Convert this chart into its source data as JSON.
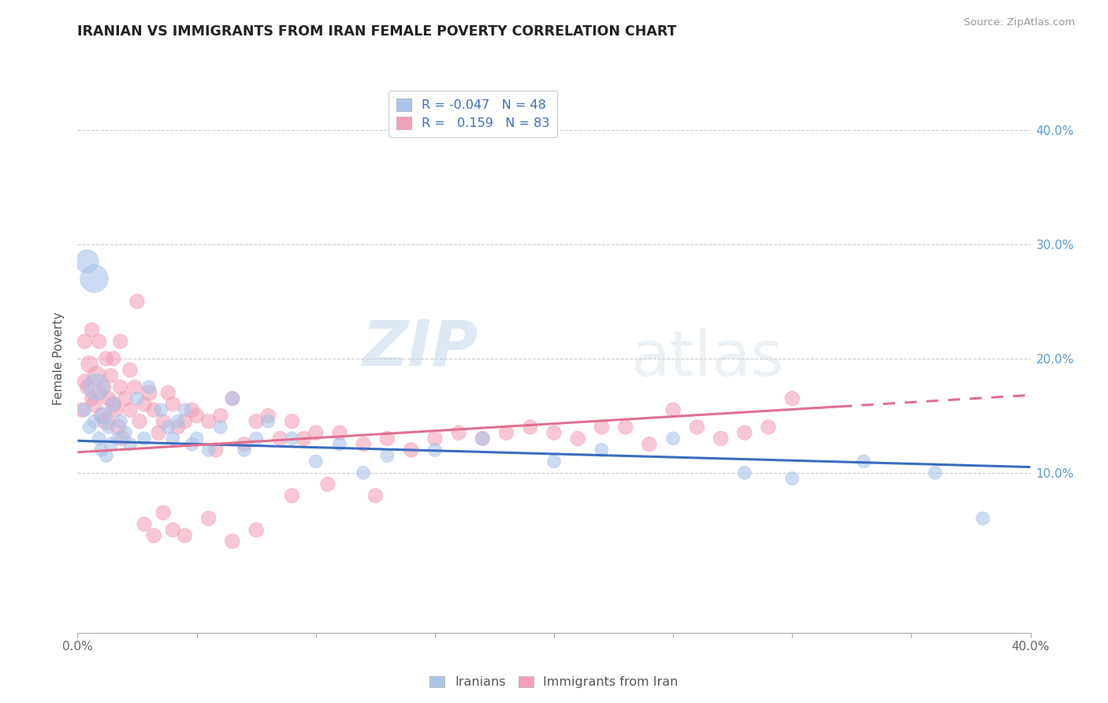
{
  "title": "IRANIAN VS IMMIGRANTS FROM IRAN FEMALE POVERTY CORRELATION CHART",
  "source": "Source: ZipAtlas.com",
  "ylabel": "Female Poverty",
  "watermark": "ZIPatlas",
  "legend_r1": "R = -0.047",
  "legend_n1": "N = 48",
  "legend_r2": "R =  0.159",
  "legend_n2": "N = 83",
  "legend_label1": "Iranians",
  "legend_label2": "Immigrants from Iran",
  "xlim": [
    0.0,
    0.4
  ],
  "ylim": [
    -0.04,
    0.44
  ],
  "yticks": [
    0.1,
    0.2,
    0.3,
    0.4
  ],
  "ytick_labels": [
    "10.0%",
    "20.0%",
    "30.0%",
    "40.0%"
  ],
  "xticks": [
    0.0,
    0.05,
    0.1,
    0.15,
    0.2,
    0.25,
    0.3,
    0.35,
    0.4
  ],
  "color_blue": "#aac4e8",
  "color_pink": "#f4a0b8",
  "line_blue": "#3c6cbf",
  "line_pink": "#e07090",
  "background": "#ffffff",
  "iranians_x": [
    0.003,
    0.005,
    0.007,
    0.008,
    0.009,
    0.01,
    0.011,
    0.012,
    0.013,
    0.014,
    0.015,
    0.017,
    0.018,
    0.02,
    0.022,
    0.025,
    0.028,
    0.03,
    0.035,
    0.038,
    0.04,
    0.042,
    0.045,
    0.048,
    0.05,
    0.055,
    0.06,
    0.065,
    0.07,
    0.075,
    0.08,
    0.09,
    0.1,
    0.11,
    0.12,
    0.13,
    0.15,
    0.17,
    0.2,
    0.22,
    0.25,
    0.28,
    0.3,
    0.33,
    0.36,
    0.38,
    0.007,
    0.004
  ],
  "iranians_y": [
    0.155,
    0.14,
    0.145,
    0.175,
    0.13,
    0.12,
    0.15,
    0.115,
    0.14,
    0.125,
    0.16,
    0.13,
    0.145,
    0.135,
    0.125,
    0.165,
    0.13,
    0.175,
    0.155,
    0.14,
    0.13,
    0.145,
    0.155,
    0.125,
    0.13,
    0.12,
    0.14,
    0.165,
    0.12,
    0.13,
    0.145,
    0.13,
    0.11,
    0.125,
    0.1,
    0.115,
    0.12,
    0.13,
    0.11,
    0.12,
    0.13,
    0.1,
    0.095,
    0.11,
    0.1,
    0.06,
    0.27,
    0.285
  ],
  "iranians_size": [
    50,
    50,
    50,
    200,
    50,
    50,
    80,
    50,
    50,
    50,
    50,
    50,
    50,
    50,
    50,
    50,
    50,
    50,
    50,
    50,
    50,
    50,
    50,
    50,
    50,
    50,
    50,
    50,
    50,
    50,
    50,
    50,
    50,
    50,
    50,
    50,
    50,
    50,
    50,
    50,
    50,
    50,
    50,
    50,
    50,
    50,
    220,
    150
  ],
  "immigrants_x": [
    0.002,
    0.003,
    0.004,
    0.005,
    0.006,
    0.007,
    0.008,
    0.009,
    0.01,
    0.011,
    0.012,
    0.013,
    0.014,
    0.015,
    0.016,
    0.017,
    0.018,
    0.019,
    0.02,
    0.022,
    0.024,
    0.026,
    0.028,
    0.03,
    0.032,
    0.034,
    0.036,
    0.038,
    0.04,
    0.042,
    0.045,
    0.048,
    0.05,
    0.055,
    0.058,
    0.06,
    0.065,
    0.07,
    0.075,
    0.08,
    0.085,
    0.09,
    0.095,
    0.1,
    0.11,
    0.12,
    0.13,
    0.14,
    0.15,
    0.16,
    0.17,
    0.18,
    0.19,
    0.2,
    0.21,
    0.22,
    0.23,
    0.24,
    0.25,
    0.26,
    0.27,
    0.28,
    0.29,
    0.3,
    0.003,
    0.006,
    0.009,
    0.012,
    0.015,
    0.018,
    0.022,
    0.025,
    0.028,
    0.032,
    0.036,
    0.04,
    0.045,
    0.055,
    0.065,
    0.075,
    0.09,
    0.105,
    0.125
  ],
  "immigrants_y": [
    0.155,
    0.18,
    0.175,
    0.195,
    0.165,
    0.16,
    0.185,
    0.17,
    0.15,
    0.175,
    0.145,
    0.165,
    0.185,
    0.16,
    0.155,
    0.14,
    0.175,
    0.13,
    0.165,
    0.155,
    0.175,
    0.145,
    0.16,
    0.17,
    0.155,
    0.135,
    0.145,
    0.17,
    0.16,
    0.14,
    0.145,
    0.155,
    0.15,
    0.145,
    0.12,
    0.15,
    0.165,
    0.125,
    0.145,
    0.15,
    0.13,
    0.145,
    0.13,
    0.135,
    0.135,
    0.125,
    0.13,
    0.12,
    0.13,
    0.135,
    0.13,
    0.135,
    0.14,
    0.135,
    0.13,
    0.14,
    0.14,
    0.125,
    0.155,
    0.14,
    0.13,
    0.135,
    0.14,
    0.165,
    0.215,
    0.225,
    0.215,
    0.2,
    0.2,
    0.215,
    0.19,
    0.25,
    0.055,
    0.045,
    0.065,
    0.05,
    0.045,
    0.06,
    0.04,
    0.05,
    0.08,
    0.09,
    0.08
  ],
  "immigrants_size": [
    60,
    60,
    60,
    80,
    60,
    70,
    100,
    60,
    70,
    60,
    80,
    60,
    60,
    70,
    60,
    70,
    60,
    60,
    60,
    60,
    60,
    60,
    60,
    70,
    60,
    60,
    60,
    60,
    60,
    60,
    60,
    60,
    60,
    60,
    60,
    60,
    60,
    60,
    60,
    60,
    60,
    60,
    60,
    60,
    60,
    60,
    60,
    60,
    60,
    60,
    60,
    60,
    60,
    60,
    60,
    60,
    60,
    60,
    60,
    60,
    60,
    60,
    60,
    60,
    60,
    60,
    60,
    60,
    60,
    60,
    60,
    60,
    60,
    60,
    60,
    60,
    60,
    60,
    60,
    60,
    60,
    60,
    60
  ],
  "blue_line_y0": 0.128,
  "blue_line_y1": 0.105,
  "pink_line_y0": 0.118,
  "pink_line_y1": 0.168
}
